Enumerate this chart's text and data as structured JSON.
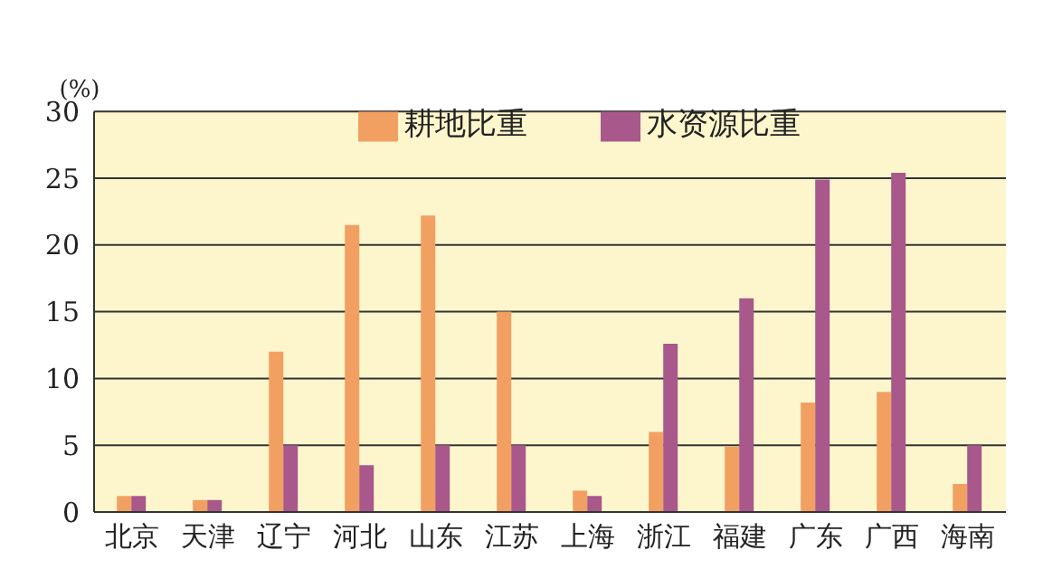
{
  "chart_data": {
    "type": "bar",
    "ylabel": "(%)",
    "categories": [
      "北京",
      "天津",
      "辽宁",
      "河北",
      "山东",
      "江苏",
      "上海",
      "浙江",
      "福建",
      "广东",
      "广西",
      "海南"
    ],
    "series": [
      {
        "name": "耕地比重",
        "color": "#f2a062",
        "values": [
          1.2,
          0.9,
          12.0,
          21.5,
          22.2,
          15.0,
          1.6,
          6.0,
          4.9,
          8.2,
          9.0,
          2.1
        ]
      },
      {
        "name": "水资源比重",
        "color": "#a8588a",
        "values": [
          1.2,
          0.9,
          5.0,
          3.5,
          5.0,
          5.0,
          1.2,
          12.6,
          16.0,
          24.9,
          25.4,
          5.0
        ]
      }
    ],
    "ylim": [
      0,
      30
    ],
    "yticks": [
      0,
      5,
      10,
      15,
      20,
      25,
      30
    ],
    "grid": "y",
    "legend": "top"
  }
}
